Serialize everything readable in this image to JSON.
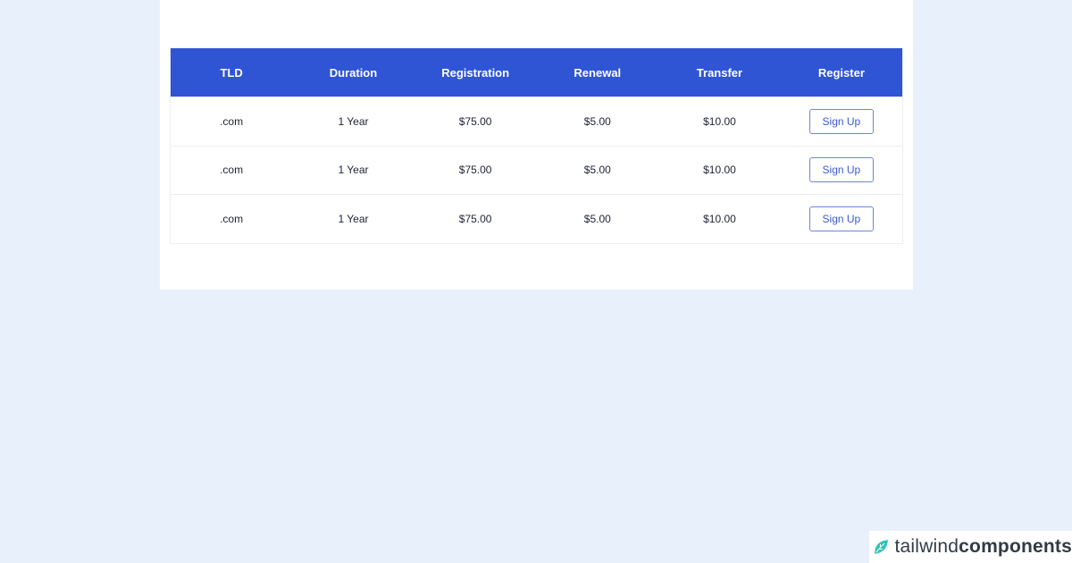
{
  "table": {
    "headers": [
      "TLD",
      "Duration",
      "Registration",
      "Renewal",
      "Transfer",
      "Register"
    ],
    "rows": [
      {
        "tld": ".com",
        "duration": "1 Year",
        "registration": "$75.00",
        "renewal": "$5.00",
        "transfer": "$10.00",
        "action": "Sign Up"
      },
      {
        "tld": ".com",
        "duration": "1 Year",
        "registration": "$75.00",
        "renewal": "$5.00",
        "transfer": "$10.00",
        "action": "Sign Up"
      },
      {
        "tld": ".com",
        "duration": "1 Year",
        "registration": "$75.00",
        "renewal": "$5.00",
        "transfer": "$10.00",
        "action": "Sign Up"
      }
    ]
  },
  "branding": {
    "light": "tailwind",
    "bold": "components",
    "icon": "leaf-icon"
  },
  "colors": {
    "header": "#2f55d4",
    "background": "#e8f1fb",
    "button_border": "#6d85dd",
    "logo": "#2ec4b6"
  }
}
